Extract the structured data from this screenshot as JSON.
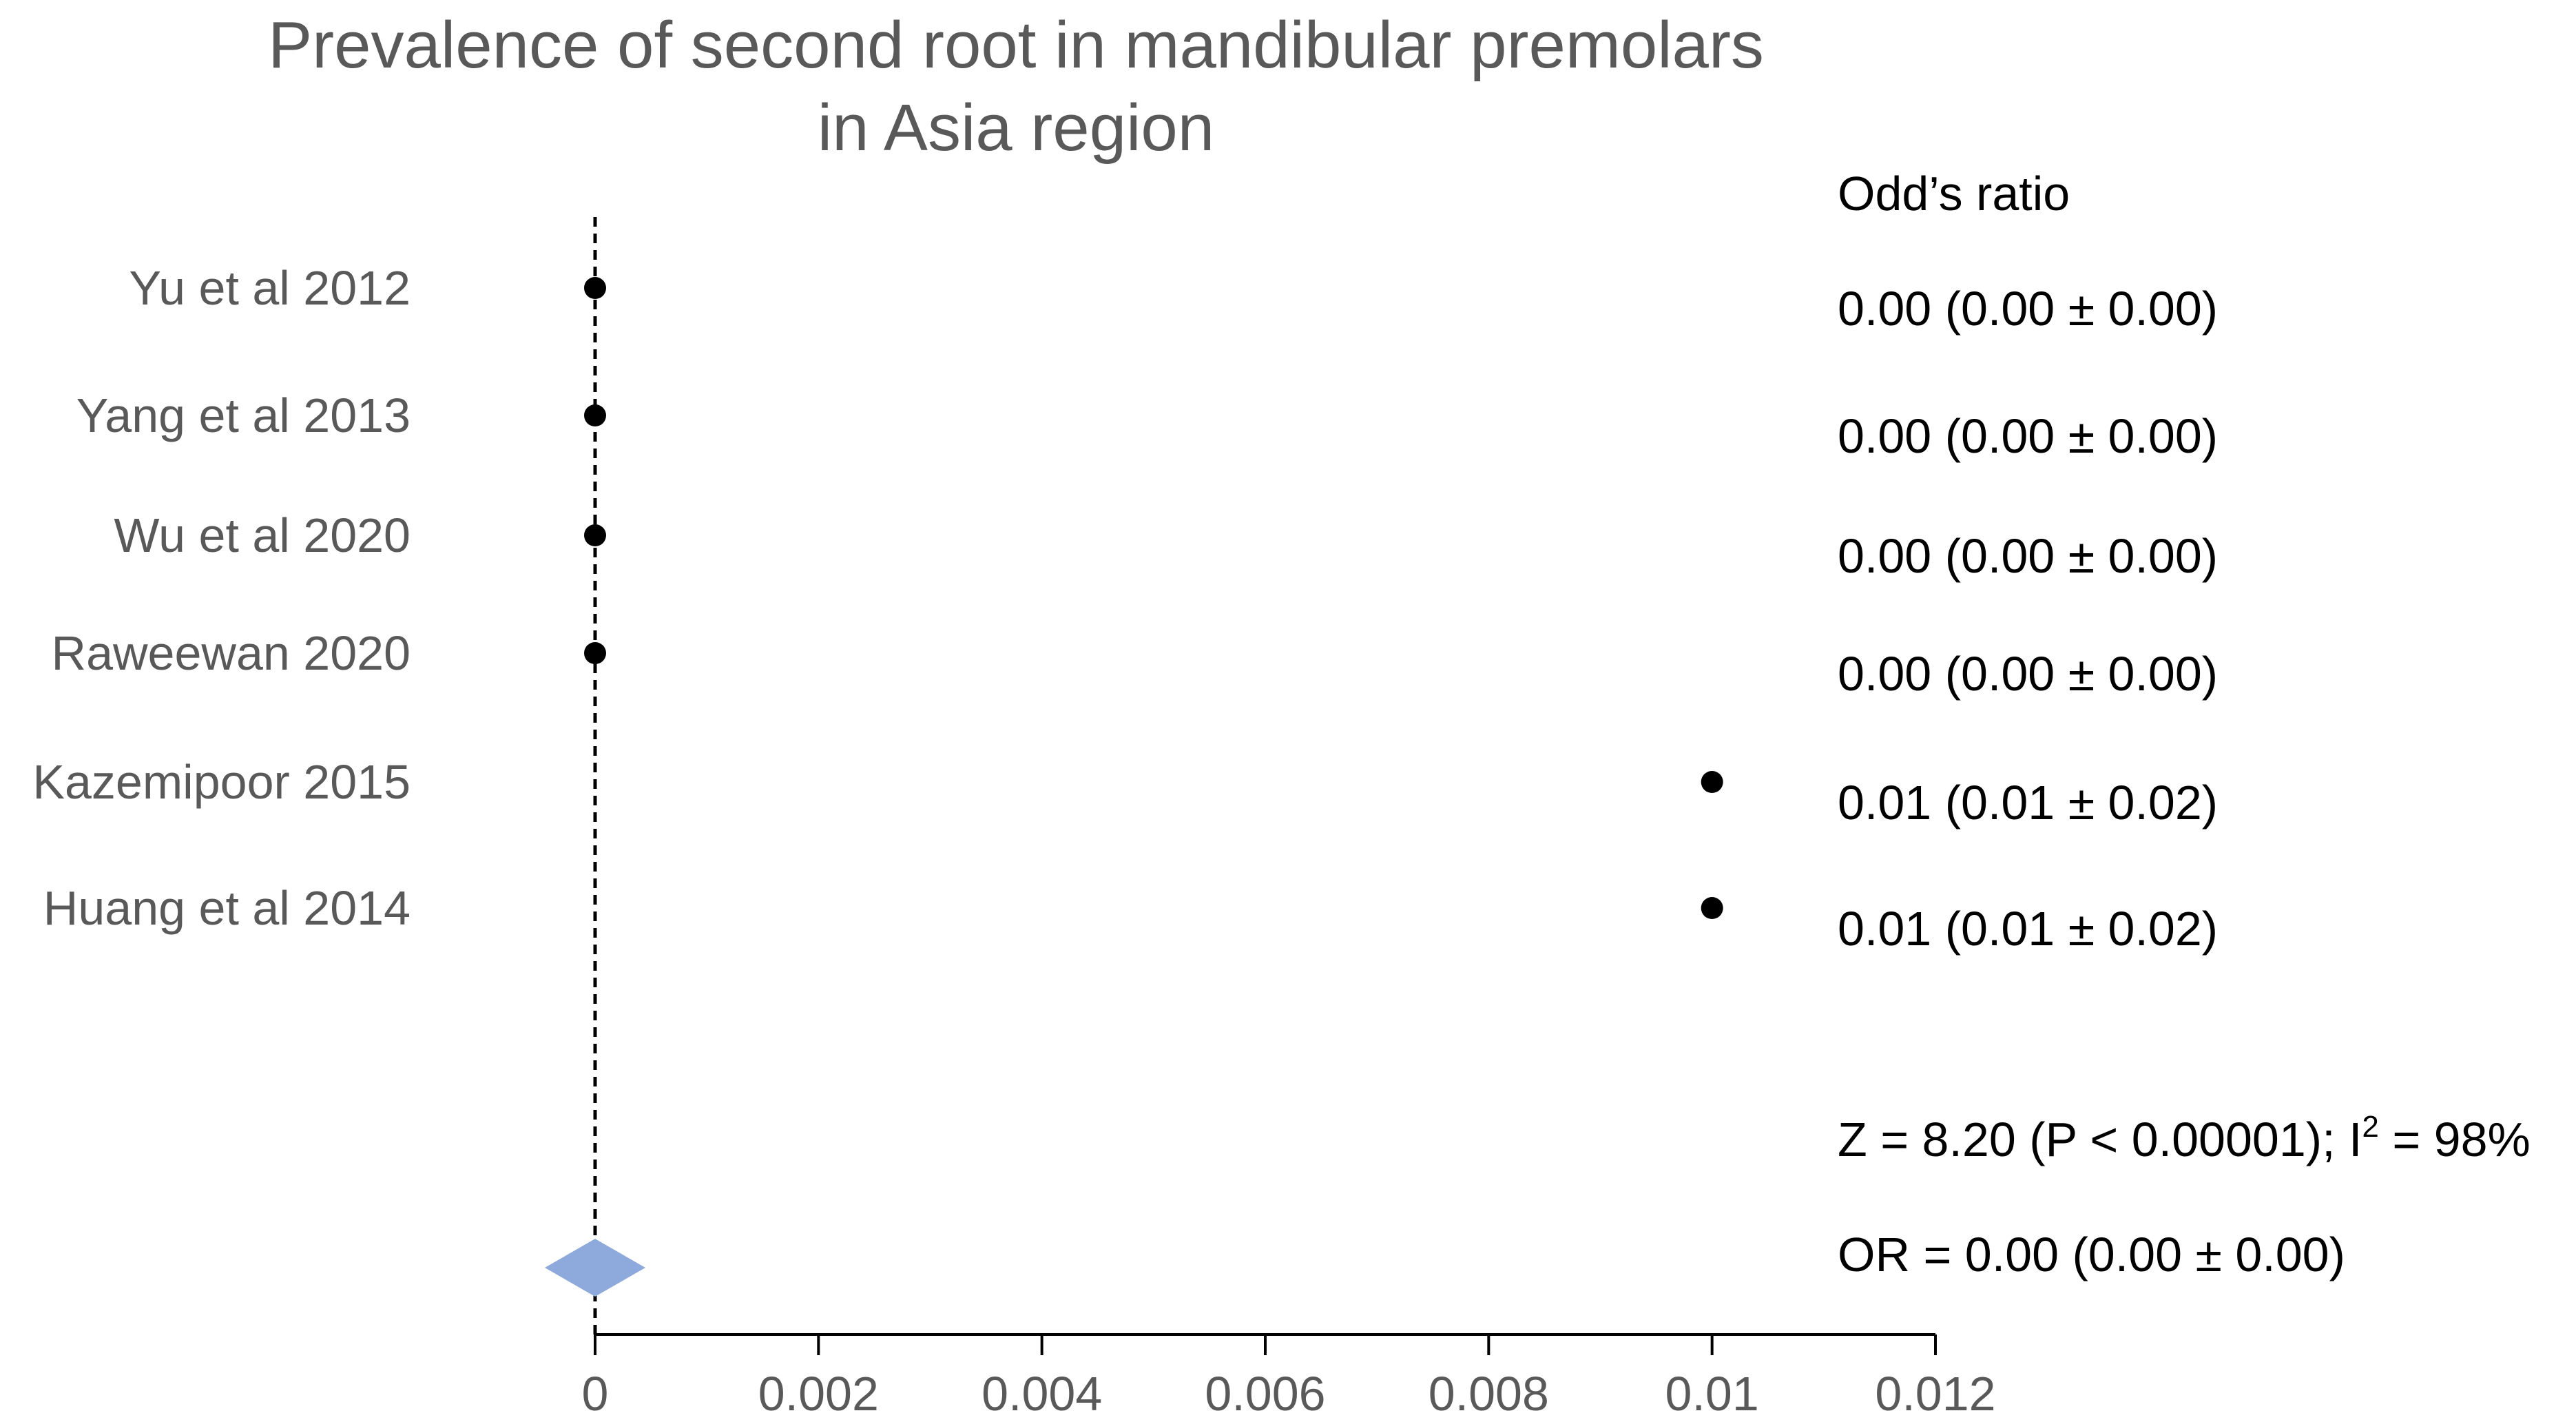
{
  "colors": {
    "text_muted": "#595959",
    "text": "#000000",
    "point": "#000000",
    "diamond": "#8EA9DB",
    "axis": "#000000"
  },
  "chart_data": {
    "type": "scatter",
    "subtype": "forest-plot",
    "title_lines": [
      "Prevalence of second root in mandibular premolars",
      "in Asia region"
    ],
    "column_header": "Odd’s ratio",
    "xlim": [
      0,
      0.012
    ],
    "xticks": [
      0,
      0.002,
      0.004,
      0.006,
      0.008,
      0.01,
      0.012
    ],
    "xtick_labels": [
      "0",
      "0.002",
      "0.004",
      "0.006",
      "0.008",
      "0.01",
      "0.012"
    ],
    "reference_line": 0,
    "studies": [
      {
        "label": "Yu et al 2012",
        "estimate": 0.0,
        "or_text": "0.00 (0.00 ± 0.00)"
      },
      {
        "label": "Yang et al 2013",
        "estimate": 0.0,
        "or_text": "0.00 (0.00 ± 0.00)"
      },
      {
        "label": "Wu et al 2020",
        "estimate": 0.0,
        "or_text": "0.00 (0.00 ± 0.00)"
      },
      {
        "label": "Raweewan 2020",
        "estimate": 0.0,
        "or_text": "0.00 (0.00 ± 0.00)"
      },
      {
        "label": "Kazemipoor 2015",
        "estimate": 0.01,
        "or_text": "0.01 (0.01 ± 0.02)"
      },
      {
        "label": "Huang et al 2014",
        "estimate": 0.01,
        "or_text": "0.01 (0.01 ± 0.02)"
      }
    ],
    "heterogeneity": {
      "prefix": "Z = 8.20 (P < 0.00001); I",
      "sup": "2",
      "suffix": " = 98%"
    },
    "pooled": {
      "estimate": 0.0,
      "lower": -0.00045,
      "upper": 0.00045,
      "text": "OR = 0.00 (0.00 ± 0.00)"
    },
    "grid": false,
    "legend": "none"
  }
}
